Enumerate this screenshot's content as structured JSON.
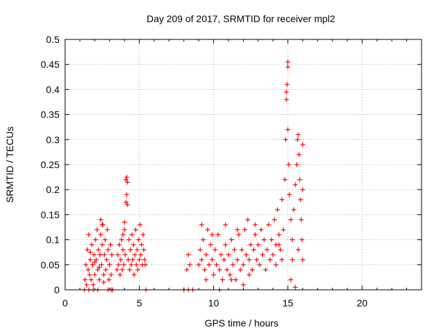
{
  "chart_data": {
    "type": "scatter",
    "title": "Day 209 of 2017, SRMTID for receiver mpl2",
    "xlabel": "GPS time / hours",
    "ylabel": "SRMTID / TECUs",
    "xlim": [
      0,
      24
    ],
    "ylim": [
      0,
      0.5
    ],
    "xticks": [
      0,
      5,
      10,
      15,
      20
    ],
    "xtick_labels": [
      "0",
      "5",
      "10",
      "15",
      "20"
    ],
    "yticks": [
      0,
      0.05,
      0.1,
      0.15,
      0.2,
      0.25,
      0.3,
      0.35,
      0.4,
      0.45,
      0.5
    ],
    "ytick_labels": [
      "0",
      "0.05",
      "0.1",
      "0.15",
      "0.2",
      "0.25",
      "0.3",
      "0.35",
      "0.4",
      "0.45",
      "0.5"
    ],
    "grid": true,
    "marker": "plus",
    "color": "#ff0000",
    "series": [
      {
        "name": "mpl2",
        "points": [
          [
            1.3,
            0.0
          ],
          [
            1.35,
            0.02
          ],
          [
            1.4,
            0.05
          ],
          [
            1.45,
            0.01
          ],
          [
            1.5,
            0.08
          ],
          [
            1.55,
            0.04
          ],
          [
            1.6,
            0.11
          ],
          [
            1.65,
            0.03
          ],
          [
            1.7,
            0.06
          ],
          [
            1.75,
            0.02
          ],
          [
            1.8,
            0.09
          ],
          [
            1.85,
            0.05
          ],
          [
            1.9,
            0.01
          ],
          [
            1.95,
            0.07
          ],
          [
            2.0,
            0.03
          ],
          [
            2.05,
            0.1
          ],
          [
            2.1,
            0.06
          ],
          [
            2.15,
            0.12
          ],
          [
            2.2,
            0.04
          ],
          [
            2.25,
            0.08
          ],
          [
            2.3,
            0.02
          ],
          [
            2.35,
            0.07
          ],
          [
            2.4,
            0.11
          ],
          [
            2.45,
            0.05
          ],
          [
            2.5,
            0.09
          ],
          [
            2.55,
            0.13
          ],
          [
            2.6,
            0.03
          ],
          [
            2.65,
            0.07
          ],
          [
            2.7,
            0.1
          ],
          [
            2.75,
            0.04
          ],
          [
            2.8,
            0.06
          ],
          [
            2.85,
            0.12
          ],
          [
            2.9,
            0.08
          ],
          [
            2.95,
            0.02
          ],
          [
            3.0,
            0.05
          ],
          [
            3.05,
            0.09
          ],
          [
            3.1,
            0.03
          ],
          [
            3.15,
            0.07
          ],
          [
            1.6,
            0.0
          ],
          [
            1.9,
            0.0
          ],
          [
            2.2,
            0.0
          ],
          [
            2.6,
            0.015
          ],
          [
            2.9,
            0.0
          ],
          [
            3.1,
            0.0
          ],
          [
            3.2,
            0.0
          ],
          [
            2.4,
            0.14
          ],
          [
            2.5,
            0.13
          ],
          [
            1.7,
            0.075
          ],
          [
            2.0,
            0.055
          ],
          [
            2.3,
            0.045
          ],
          [
            3.5,
            0.04
          ],
          [
            3.55,
            0.07
          ],
          [
            3.6,
            0.05
          ],
          [
            3.65,
            0.09
          ],
          [
            3.7,
            0.03
          ],
          [
            3.75,
            0.06
          ],
          [
            3.8,
            0.1
          ],
          [
            3.85,
            0.04
          ],
          [
            3.9,
            0.08
          ],
          [
            3.95,
            0.05
          ],
          [
            4.0,
            0.12
          ],
          [
            4.05,
            0.07
          ],
          [
            4.1,
            0.22
          ],
          [
            4.15,
            0.19
          ],
          [
            4.2,
            0.17
          ],
          [
            4.25,
            0.06
          ],
          [
            4.3,
            0.1
          ],
          [
            4.35,
            0.04
          ],
          [
            4.4,
            0.08
          ],
          [
            4.45,
            0.05
          ],
          [
            4.5,
            0.11
          ],
          [
            4.55,
            0.06
          ],
          [
            4.6,
            0.09
          ],
          [
            4.65,
            0.03
          ],
          [
            4.7,
            0.07
          ],
          [
            4.75,
            0.12
          ],
          [
            4.8,
            0.05
          ],
          [
            4.85,
            0.08
          ],
          [
            4.9,
            0.04
          ],
          [
            4.95,
            0.1
          ],
          [
            5.0,
            0.06
          ],
          [
            5.05,
            0.13
          ],
          [
            5.1,
            0.07
          ],
          [
            5.15,
            0.09
          ],
          [
            5.2,
            0.05
          ],
          [
            5.25,
            0.11
          ],
          [
            5.3,
            0.08
          ],
          [
            5.35,
            0.06
          ],
          [
            5.4,
            0.05
          ],
          [
            5.45,
            0.0
          ],
          [
            4.15,
            0.225
          ],
          [
            4.2,
            0.215
          ],
          [
            4.1,
            0.175
          ],
          [
            3.9,
            0.11
          ],
          [
            4.0,
            0.135
          ],
          [
            8.0,
            0.0
          ],
          [
            8.3,
            0.0
          ],
          [
            8.6,
            0.0
          ],
          [
            8.2,
            0.04
          ],
          [
            8.3,
            0.07
          ],
          [
            8.4,
            0.05
          ],
          [
            9.0,
            0.05
          ],
          [
            9.1,
            0.08
          ],
          [
            9.2,
            0.06
          ],
          [
            9.3,
            0.1
          ],
          [
            9.4,
            0.04
          ],
          [
            9.5,
            0.07
          ],
          [
            9.6,
            0.12
          ],
          [
            9.7,
            0.05
          ],
          [
            9.8,
            0.09
          ],
          [
            9.9,
            0.06
          ],
          [
            10.0,
            0.03
          ],
          [
            10.1,
            0.08
          ],
          [
            10.2,
            0.05
          ],
          [
            10.3,
            0.11
          ],
          [
            10.4,
            0.04
          ],
          [
            10.5,
            0.07
          ],
          [
            10.6,
            0.02
          ],
          [
            10.7,
            0.06
          ],
          [
            10.8,
            0.09
          ],
          [
            10.9,
            0.04
          ],
          [
            11.0,
            0.07
          ],
          [
            11.1,
            0.03
          ],
          [
            11.2,
            0.1
          ],
          [
            11.3,
            0.05
          ],
          [
            11.4,
            0.08
          ],
          [
            11.5,
            0.02
          ],
          [
            11.6,
            0.06
          ],
          [
            11.7,
            0.11
          ],
          [
            11.8,
            0.04
          ],
          [
            11.9,
            0.08
          ],
          [
            12.0,
            0.05
          ],
          [
            12.1,
            0.12
          ],
          [
            12.2,
            0.07
          ],
          [
            12.3,
            0.14
          ],
          [
            12.4,
            0.06
          ],
          [
            12.5,
            0.09
          ],
          [
            12.6,
            0.04
          ],
          [
            12.7,
            0.08
          ],
          [
            12.8,
            0.11
          ],
          [
            12.9,
            0.06
          ],
          [
            13.0,
            0.09
          ],
          [
            13.1,
            0.05
          ],
          [
            13.2,
            0.12
          ],
          [
            13.3,
            0.07
          ],
          [
            13.4,
            0.1
          ],
          [
            13.5,
            0.04
          ],
          [
            13.6,
            0.08
          ],
          [
            13.7,
            0.13
          ],
          [
            13.8,
            0.06
          ],
          [
            13.9,
            0.1
          ],
          [
            14.0,
            0.07
          ],
          [
            14.1,
            0.14
          ],
          [
            14.2,
            0.09
          ],
          [
            14.3,
            0.16
          ],
          [
            14.4,
            0.11
          ],
          [
            14.5,
            0.08
          ],
          [
            14.6,
            0.18
          ],
          [
            14.7,
            0.12
          ],
          [
            14.8,
            0.22
          ],
          [
            14.85,
            0.3
          ],
          [
            14.9,
            0.38
          ],
          [
            14.95,
            0.41
          ],
          [
            15.0,
            0.455
          ],
          [
            15.0,
            0.445
          ],
          [
            14.9,
            0.395
          ],
          [
            15.0,
            0.32
          ],
          [
            15.05,
            0.25
          ],
          [
            15.1,
            0.19
          ],
          [
            15.2,
            0.14
          ],
          [
            15.3,
            0.1
          ],
          [
            15.4,
            0.16
          ],
          [
            15.5,
            0.21
          ],
          [
            15.6,
            0.25
          ],
          [
            15.65,
            0.3
          ],
          [
            15.7,
            0.31
          ],
          [
            15.75,
            0.27
          ],
          [
            15.8,
            0.22
          ],
          [
            15.85,
            0.18
          ],
          [
            15.9,
            0.14
          ],
          [
            15.95,
            0.1
          ],
          [
            16.0,
            0.06
          ],
          [
            16.0,
            0.2
          ],
          [
            16.0,
            0.29
          ],
          [
            15.7,
            0.08
          ],
          [
            15.5,
            0.005
          ],
          [
            15.3,
            0.06
          ],
          [
            15.2,
            0.02
          ],
          [
            14.6,
            0.06
          ],
          [
            14.4,
            0.09
          ],
          [
            14.2,
            0.05
          ],
          [
            9.2,
            0.13
          ],
          [
            9.5,
            0.02
          ],
          [
            9.9,
            0.11
          ],
          [
            10.4,
            0.0
          ],
          [
            10.8,
            0.13
          ],
          [
            11.2,
            0.02
          ],
          [
            11.6,
            0.12
          ],
          [
            12.0,
            0.01
          ],
          [
            12.4,
            0.03
          ],
          [
            12.8,
            0.13
          ]
        ]
      }
    ]
  }
}
